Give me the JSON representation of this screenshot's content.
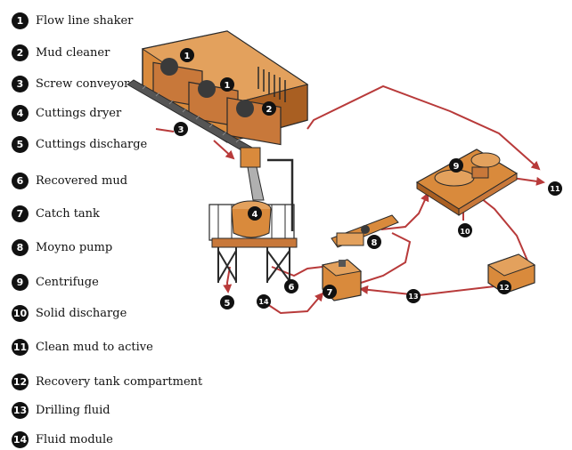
{
  "legend": [
    {
      "num": "1",
      "label": "Flow line shaker"
    },
    {
      "num": "2",
      "label": "Mud cleaner"
    },
    {
      "num": "3",
      "label": "Screw conveyor"
    },
    {
      "num": "4",
      "label": "Cuttings dryer"
    },
    {
      "num": "5",
      "label": "Cuttings discharge"
    },
    {
      "num": "6",
      "label": "Recovered mud"
    },
    {
      "num": "7",
      "label": "Catch tank"
    },
    {
      "num": "8",
      "label": "Moyno pump"
    },
    {
      "num": "9",
      "label": "Centrifuge"
    },
    {
      "num": "10",
      "label": "Solid discharge"
    },
    {
      "num": "11",
      "label": "Clean mud to active"
    },
    {
      "num": "12",
      "label": "Recovery tank compartment"
    },
    {
      "num": "13",
      "label": "Drilling fluid"
    },
    {
      "num": "14",
      "label": "Fluid module"
    }
  ],
  "colors": {
    "equipment": "#d98a3c",
    "equipment_dark": "#a95f22",
    "structure": "#2a2a2a",
    "flow_line": "#b83a3a",
    "badge": "#111111"
  }
}
